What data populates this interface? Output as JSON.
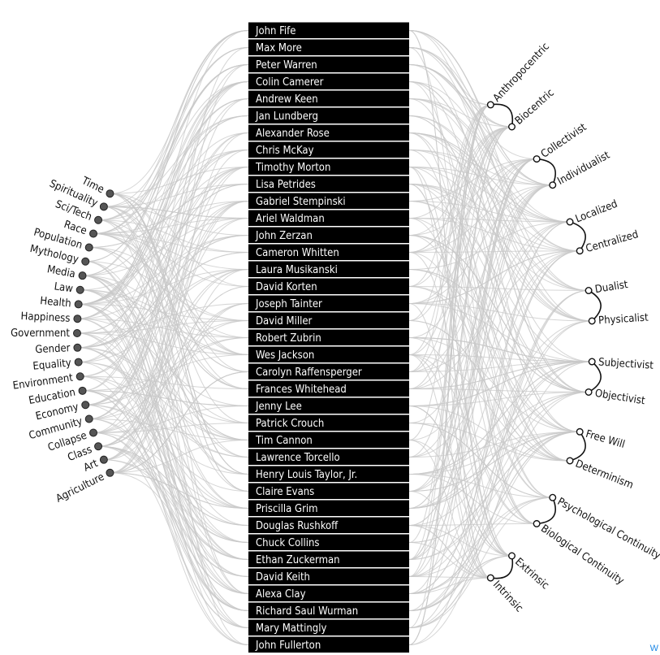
{
  "names": [
    "John Fife",
    "Max More",
    "Peter Warren",
    "Colin Camerer",
    "Andrew Keen",
    "Jan Lundberg",
    "Alexander Rose",
    "Chris McKay",
    "Timothy Morton",
    "Lisa Petrides",
    "Gabriel Stempinski",
    "Ariel Waldman",
    "John Zerzan",
    "Cameron Whitten",
    "Laura Musikanski",
    "David Korten",
    "Joseph Tainter",
    "David Miller",
    "Robert Zubrin",
    "Wes Jackson",
    "Carolyn Raffensperger",
    "Frances Whitehead",
    "Jenny Lee",
    "Patrick Crouch",
    "Tim Cannon",
    "Lawrence Torcello",
    "Henry Louis Taylor, Jr.",
    "Claire Evans",
    "Priscilla Grim",
    "Douglas Rushkoff",
    "Chuck Collins",
    "Ethan Zuckerman",
    "David Keith",
    "Alexa Clay",
    "Richard Saul Wurman",
    "Mary Mattingly",
    "John Fullerton"
  ],
  "topics": [
    "Agriculture",
    "Art",
    "Class",
    "Collapse",
    "Community",
    "Economy",
    "Education",
    "Environment",
    "Equality",
    "Gender",
    "Government",
    "Happiness",
    "Health",
    "Law",
    "Media",
    "Mythology",
    "Population",
    "Race",
    "Sci/Tech",
    "Spirituality",
    "Time"
  ],
  "pairs": [
    {
      "a": "Anthropocentric",
      "b": "Biocentric"
    },
    {
      "a": "Collectivist",
      "b": "Individualist"
    },
    {
      "a": "Localized",
      "b": "Centralized"
    },
    {
      "a": "Dualist",
      "b": "Physicalist"
    },
    {
      "a": "Subjectivist",
      "b": "Objectivist"
    },
    {
      "a": "Free Will",
      "b": "Determinism"
    },
    {
      "a": "Psychological Continuity",
      "b": "Biological Continuity"
    },
    {
      "a": "Extrinsic",
      "b": "Intrinsic"
    }
  ],
  "corner_mark": "W",
  "colors": {
    "link": "#c8c8c8",
    "bar": "#000000",
    "dot": "#555555",
    "corner": "#1e88e5"
  }
}
